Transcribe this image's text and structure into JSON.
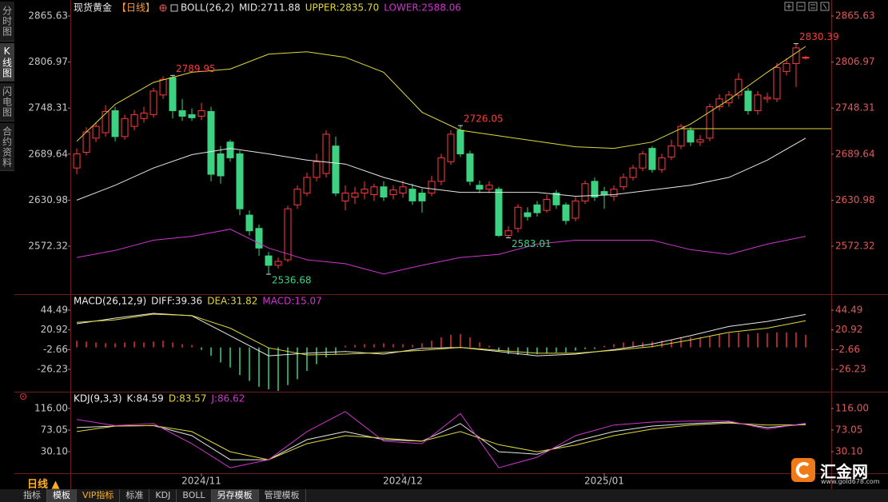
{
  "sidebar": [
    "分时图",
    "K线图",
    "闪电图",
    "合约资料"
  ],
  "period_selector": "日线 ▲",
  "tabs": [
    "指标",
    "模板",
    "VIP指标",
    "标准",
    "KDJ",
    "BOLL",
    "另存模板",
    "管理模板"
  ],
  "logo": {
    "name": "汇金网",
    "url": "www.gold678.com"
  },
  "chart_data": [
    {
      "type": "candlestick",
      "title": "现货黄金",
      "period": "【日线】",
      "indicator": "BOLL(26,2)",
      "open": [
        2672,
        2692,
        2710,
        2717,
        2745,
        2712,
        2725,
        2735,
        2740,
        2765,
        2787,
        2745,
        2740,
        2738,
        2744,
        2690,
        2705,
        2690,
        2612,
        2595,
        2560,
        2548,
        2555,
        2625,
        2640,
        2660,
        2665,
        2700,
        2630,
        2635,
        2640,
        2638,
        2648,
        2638,
        2640,
        2645,
        2640,
        2640,
        2655,
        2680,
        2720,
        2690,
        2650,
        2645,
        2645,
        2586,
        2595,
        2615,
        2625,
        2618,
        2640,
        2625,
        2608,
        2630,
        2655,
        2642,
        2636,
        2648,
        2660,
        2672,
        2697,
        2670,
        2686,
        2700,
        2720,
        2705,
        2710,
        2750,
        2755,
        2765,
        2770,
        2745,
        2760,
        2760,
        2795,
        2805,
        2812
      ],
      "high": [
        2697,
        2724,
        2730,
        2752,
        2750,
        2740,
        2746,
        2750,
        2774,
        2789,
        2789.95,
        2760,
        2748,
        2755,
        2750,
        2700,
        2708,
        2694,
        2618,
        2600,
        2565,
        2558,
        2624,
        2650,
        2666,
        2690,
        2720,
        2712,
        2650,
        2648,
        2655,
        2652,
        2655,
        2650,
        2656,
        2652,
        2646,
        2662,
        2690,
        2720,
        2726.05,
        2694,
        2656,
        2655,
        2648,
        2598,
        2626,
        2622,
        2630,
        2638,
        2644,
        2628,
        2635,
        2656,
        2660,
        2648,
        2650,
        2665,
        2676,
        2694,
        2700,
        2690,
        2708,
        2728,
        2724,
        2714,
        2754,
        2766,
        2770,
        2793,
        2774,
        2770,
        2768,
        2806,
        2812,
        2830.39,
        2815
      ],
      "low": [
        2664,
        2688,
        2705,
        2712,
        2706,
        2708,
        2720,
        2730,
        2736,
        2760,
        2735,
        2732,
        2732,
        2733,
        2655,
        2652,
        2680,
        2612,
        2586,
        2560,
        2536.68,
        2544,
        2552,
        2620,
        2636,
        2655,
        2660,
        2636,
        2618,
        2626,
        2632,
        2630,
        2630,
        2632,
        2634,
        2625,
        2615,
        2636,
        2650,
        2676,
        2686,
        2650,
        2640,
        2640,
        2584,
        2583.01,
        2590,
        2605,
        2610,
        2615,
        2620,
        2600,
        2604,
        2626,
        2630,
        2620,
        2630,
        2644,
        2656,
        2668,
        2666,
        2666,
        2682,
        2696,
        2700,
        2700,
        2706,
        2745,
        2750,
        2760,
        2740,
        2740,
        2755,
        2756,
        2790,
        2775,
        2810
      ],
      "close": [
        2690,
        2718,
        2725,
        2744,
        2712,
        2735,
        2740,
        2742,
        2770,
        2785,
        2745,
        2738,
        2736,
        2745,
        2664,
        2662,
        2685,
        2620,
        2592,
        2570,
        2548,
        2553,
        2620,
        2645,
        2660,
        2680,
        2715,
        2640,
        2640,
        2640,
        2645,
        2648,
        2635,
        2644,
        2648,
        2630,
        2630,
        2655,
        2685,
        2715,
        2690,
        2655,
        2645,
        2650,
        2586,
        2592,
        2622,
        2610,
        2615,
        2632,
        2625,
        2605,
        2630,
        2652,
        2635,
        2638,
        2645,
        2660,
        2672,
        2690,
        2670,
        2685,
        2700,
        2725,
        2705,
        2708,
        2750,
        2760,
        2765,
        2785,
        2745,
        2765,
        2762,
        2800,
        2805,
        2825,
        2813
      ],
      "up_color": "#ff3b3b",
      "down_color": "#3cd282",
      "series": [
        {
          "name": "MID:2711.88",
          "color": "#e8e8e8",
          "x": [
            0,
            4,
            8,
            12,
            16,
            20,
            24,
            28,
            32,
            36,
            40,
            44,
            48,
            52,
            56,
            60,
            64,
            68,
            72,
            76
          ],
          "values": [
            2631,
            2650,
            2672,
            2689,
            2697,
            2690,
            2682,
            2677,
            2660,
            2647,
            2641,
            2641,
            2641,
            2636,
            2638,
            2644,
            2650,
            2660,
            2682,
            2710
          ]
        },
        {
          "name": "UPPER:2835.70",
          "color": "#e2d83c",
          "x": [
            0,
            4,
            8,
            12,
            16,
            20,
            24,
            28,
            32,
            36,
            40,
            44,
            48,
            52,
            56,
            60,
            64,
            68,
            72,
            76
          ],
          "values": [
            2706,
            2753,
            2781,
            2794,
            2798,
            2817,
            2820,
            2813,
            2794,
            2743,
            2720,
            2713,
            2706,
            2699,
            2697,
            2705,
            2728,
            2759,
            2794,
            2827
          ]
        },
        {
          "name": "LOWER:2588.06",
          "color": "#d035d0",
          "x": [
            0,
            4,
            8,
            12,
            16,
            20,
            24,
            28,
            32,
            36,
            40,
            44,
            48,
            52,
            56,
            60,
            64,
            68,
            72,
            76
          ],
          "values": [
            2558,
            2567,
            2580,
            2585,
            2594,
            2570,
            2555,
            2550,
            2537,
            2548,
            2558,
            2562,
            2575,
            2580,
            2580,
            2580,
            2568,
            2562,
            2575,
            2585
          ]
        }
      ],
      "hline": {
        "value": 2722,
        "x": [
          63,
          78.67
        ],
        "color": "#e2d83c"
      },
      "xlim": [
        -0.67,
        78.67
      ],
      "ylim": [
        2514.3,
        2873.8
      ],
      "yticks": [
        2865.63,
        2806.97,
        2748.31,
        2689.64,
        2630.98,
        2572.32
      ]
    },
    {
      "type": "macd",
      "title": "MACD(26,12,9)",
      "series": [
        {
          "name": "DIFF:39.36",
          "color": "#e8e8e8",
          "x": [
            0,
            4,
            8,
            12,
            16,
            20,
            24,
            28,
            32,
            36,
            40,
            44,
            48,
            52,
            56,
            60,
            64,
            68,
            72,
            76
          ],
          "values": [
            28.3,
            35,
            40.7,
            37.8,
            14,
            -10,
            -7,
            -5,
            -8,
            -1,
            0,
            -5,
            -10,
            -8,
            -2.7,
            4,
            14,
            25,
            31,
            39.4
          ]
        },
        {
          "name": "DEA:31.82",
          "color": "#e2d83c",
          "x": [
            0,
            4,
            8,
            12,
            16,
            20,
            24,
            28,
            32,
            36,
            40,
            44,
            48,
            52,
            56,
            60,
            64,
            68,
            72,
            76
          ],
          "values": [
            30,
            33,
            39.7,
            38,
            23,
            -0.6,
            -9,
            -8,
            -6,
            -3.5,
            0,
            -3.5,
            -7,
            -7,
            -3.5,
            1,
            9,
            18,
            23,
            31.8
          ]
        },
        {
          "name": "MACD:15.07",
          "color": "#d035d0",
          "kind": "bar",
          "up_color": "#e03535",
          "down_color": "#3cd282",
          "values": [
            8,
            7,
            6,
            5,
            5,
            6,
            7,
            6,
            7,
            8,
            6,
            4,
            3,
            -3,
            -10,
            -18,
            -24,
            -33,
            -40,
            -47,
            -50,
            -52,
            -45,
            -38,
            -28,
            -20,
            -12,
            -8,
            2,
            3,
            4,
            4,
            5,
            4,
            4,
            3,
            5,
            8,
            12,
            15,
            16,
            12,
            6,
            2,
            -5,
            -8,
            -9,
            -9,
            -8,
            -7,
            -6,
            -6,
            -4,
            -2,
            -2,
            2,
            4,
            6,
            7,
            6,
            7,
            8,
            9,
            12,
            12,
            12,
            14,
            16,
            17,
            18,
            16,
            17,
            17,
            18,
            18,
            18,
            15
          ]
        }
      ],
      "xlim": [
        -0.67,
        78.67
      ],
      "ylim": [
        -52.9,
        61.7
      ],
      "yticks": [
        44.49,
        20.92,
        -2.66,
        -26.23
      ]
    },
    {
      "type": "line",
      "title": "KDJ(9,3,3)",
      "series": [
        {
          "name": "K:84.59",
          "color": "#e8e8e8",
          "x": [
            0,
            4,
            8,
            12,
            16,
            20,
            24,
            28,
            32,
            36,
            40,
            44,
            48,
            52,
            56,
            60,
            64,
            68,
            72,
            76
          ],
          "values": [
            78,
            81,
            82,
            62,
            14,
            14,
            54,
            70,
            54,
            51,
            86,
            30,
            25,
            51,
            70,
            81,
            86,
            89,
            78,
            84.6
          ]
        },
        {
          "name": "D:83.57",
          "color": "#e2d83c",
          "x": [
            0,
            4,
            8,
            12,
            16,
            20,
            24,
            28,
            32,
            36,
            40,
            44,
            48,
            52,
            56,
            60,
            64,
            68,
            72,
            76
          ],
          "values": [
            70,
            81,
            82,
            70,
            30,
            14,
            46,
            62,
            57,
            51,
            70,
            44,
            30,
            43,
            62,
            75,
            83,
            87,
            83,
            83.6
          ]
        },
        {
          "name": "J:86.62",
          "color": "#d035d0",
          "x": [
            0,
            4,
            8,
            12,
            16,
            20,
            24,
            28,
            32,
            36,
            40,
            44,
            48,
            52,
            56,
            60,
            64,
            68,
            72,
            76
          ],
          "values": [
            94,
            82,
            86,
            46,
            -2,
            14,
            70,
            110,
            51,
            46,
            106,
            -2,
            19,
            62,
            83,
            89,
            91,
            91,
            75,
            86.6
          ]
        }
      ],
      "xlim": [
        -0.67,
        78.67
      ],
      "ylim": [
        -12.8,
        146.2
      ],
      "yticks": [
        {
          "value": 116,
          "label": "116.00"
        },
        73.05,
        {
          "value": 30.1,
          "label": "30.10"
        }
      ],
      "xticks": [
        {
          "value": 13,
          "label": "2024/11"
        },
        {
          "value": 34,
          "label": "2024/12"
        },
        {
          "value": 55,
          "label": "2025/01"
        }
      ]
    }
  ]
}
